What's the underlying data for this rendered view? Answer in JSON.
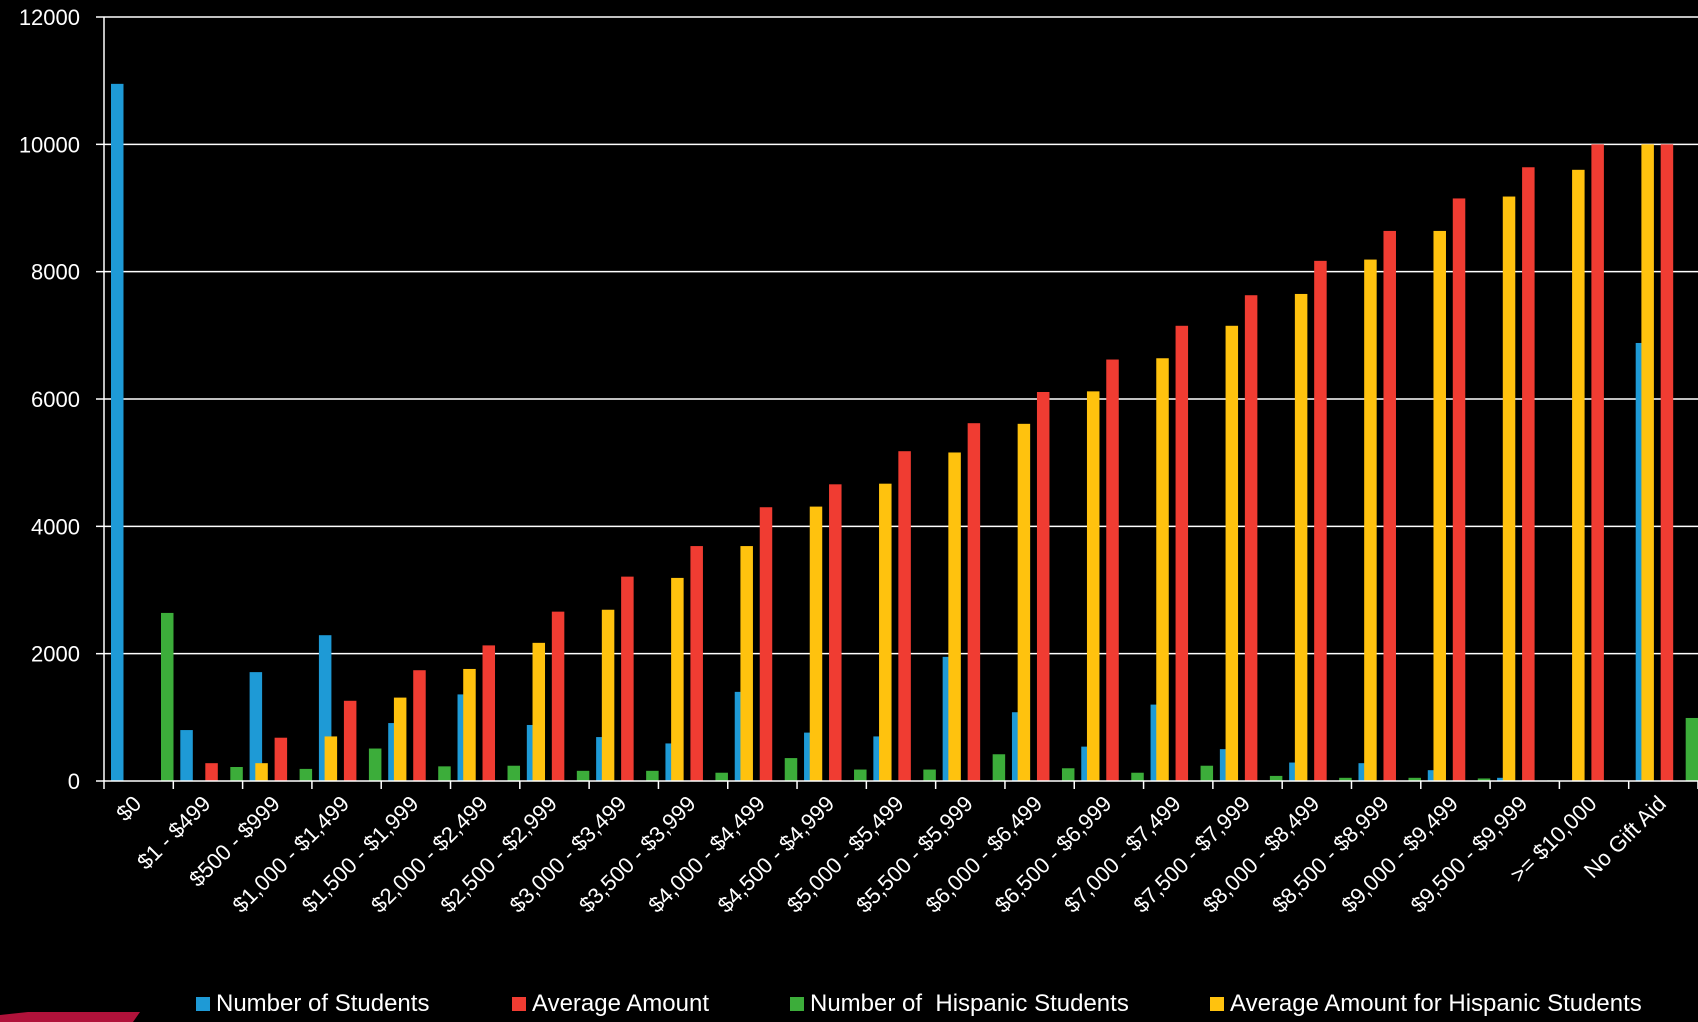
{
  "chart_data": {
    "type": "bar",
    "ylim": [
      0,
      12000
    ],
    "yticks": [
      "0",
      "2000",
      "4000",
      "6000",
      "8000",
      "10000",
      "12000"
    ],
    "grid": true,
    "legend_position": "bottom",
    "categories": [
      "$0",
      "$1 - $499",
      "$500 - $999",
      "$1,000 - $1,499",
      "$1,500 - $1,999",
      "$2,000 - $2,499",
      "$2,500 - $2,999",
      "$3,000 - $3,499",
      "$3,500 - $3,999",
      "$4,000 - $4,499",
      "$4,500 - $4,999",
      "$5,000 - $5,499",
      "$5,500 - $5,999",
      "$6,000 - $6,499",
      "$6,500 - $6,999",
      "$7,000 - $7,499",
      "$7,500 - $7,999",
      "$8,000 - $8,499",
      "$8,500 - $8,999",
      "$9,000 - $9,499",
      "$9,500 - $9,999",
      ">= $10,000",
      "No Gift Aid"
    ],
    "series": [
      {
        "name": "Number of Students",
        "color": "#1e9ad6",
        "values": [
          10950,
          800,
          1710,
          2290,
          910,
          1360,
          880,
          690,
          590,
          1400,
          760,
          700,
          1950,
          1080,
          540,
          1200,
          500,
          290,
          280,
          170,
          50,
          0,
          6880
        ]
      },
      {
        "name": "Average Amount",
        "color": "#f03c32",
        "values": [
          0,
          280,
          680,
          1260,
          1740,
          2130,
          2660,
          3210,
          3690,
          4300,
          4660,
          5180,
          5620,
          6110,
          6620,
          7150,
          7630,
          8170,
          8640,
          9150,
          9640,
          10000,
          10000
        ]
      },
      {
        "name": "Number of  Hispanic Students",
        "color": "#3cad3a",
        "values": [
          2640,
          220,
          190,
          510,
          230,
          240,
          160,
          160,
          130,
          360,
          180,
          180,
          420,
          200,
          130,
          240,
          80,
          50,
          50,
          40,
          10,
          0,
          990
        ]
      },
      {
        "name": "Average Amount for Hispanic Students",
        "color": "#ffc20e",
        "values": [
          0,
          280,
          700,
          1310,
          1760,
          2170,
          2690,
          3190,
          3690,
          4310,
          4670,
          5160,
          5610,
          6120,
          6640,
          7150,
          7650,
          8190,
          8640,
          9180,
          9600,
          10000,
          10000
        ]
      }
    ]
  }
}
